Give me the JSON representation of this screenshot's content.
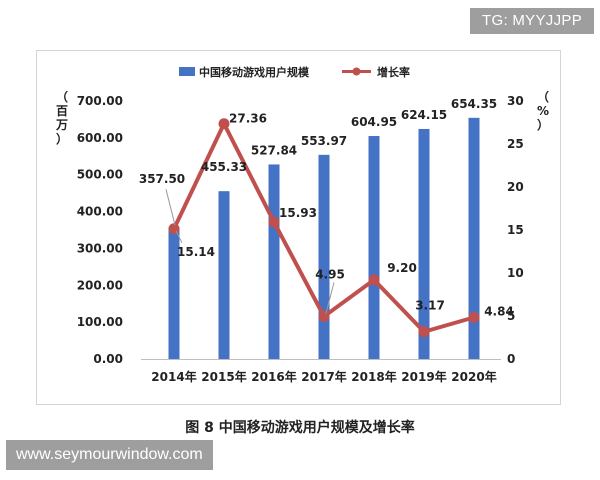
{
  "watermarks": {
    "top_right": "TG: MYYJJPP",
    "bottom_left": "www.seymourwindow.com"
  },
  "caption": "图 8  中国移动游戏用户规模及增长率",
  "colors": {
    "bar": "#4472c4",
    "line": "#c0504d",
    "frame": "#d4d4d4"
  },
  "chart_data": {
    "type": "bar",
    "categories": [
      "2014年",
      "2015年",
      "2016年",
      "2017年",
      "2018年",
      "2019年",
      "2020年"
    ],
    "series": [
      {
        "name": "中国移动游戏用户规模",
        "type": "bar",
        "axis": "left",
        "values": [
          357.5,
          455.33,
          527.84,
          553.97,
          604.95,
          624.15,
          654.35
        ],
        "labels": [
          "357.50",
          "455.33",
          "527.84",
          "553.97",
          "604.95",
          "624.15",
          "654.35"
        ]
      },
      {
        "name": "增长率",
        "type": "line",
        "axis": "right",
        "values": [
          15.14,
          27.36,
          15.93,
          4.95,
          9.2,
          3.17,
          4.84
        ],
        "labels": [
          "15.14",
          "27.36",
          "15.93",
          "4.95",
          "9.20",
          "3.17",
          "4.84"
        ]
      }
    ],
    "y_left": {
      "label": "（百万）",
      "ylim": [
        0,
        700
      ],
      "ticks": [
        "0.00",
        "100.00",
        "200.00",
        "300.00",
        "400.00",
        "500.00",
        "600.00",
        "700.00"
      ]
    },
    "y_right": {
      "label": "（%）",
      "ylim": [
        0,
        30
      ],
      "ticks": [
        "0",
        "5",
        "10",
        "15",
        "20",
        "25",
        "30"
      ]
    },
    "legend_position": "top",
    "grid": false
  }
}
